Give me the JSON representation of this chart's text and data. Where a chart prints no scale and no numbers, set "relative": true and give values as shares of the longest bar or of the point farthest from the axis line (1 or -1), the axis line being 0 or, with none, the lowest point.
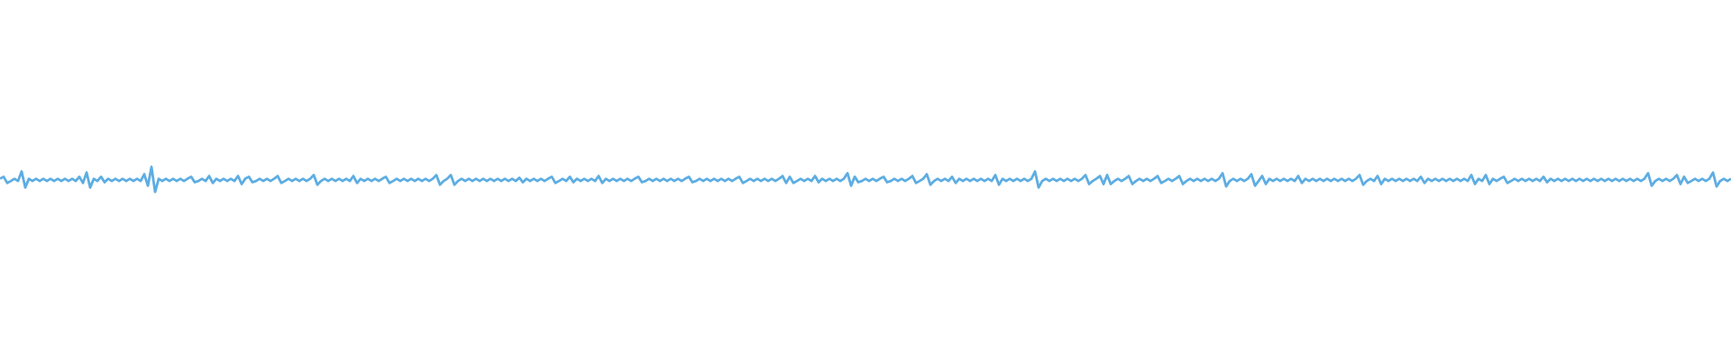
{
  "chart_data": {
    "type": "line",
    "relative": true,
    "color": "#5dade2",
    "categories": [
      null,
      null,
      null,
      null,
      null,
      null,
      null,
      null,
      null,
      null,
      null,
      null,
      null,
      null,
      null,
      null,
      null,
      null,
      null,
      null,
      null,
      null,
      null,
      null,
      null,
      null,
      null,
      null,
      null,
      null,
      null,
      null,
      null,
      null,
      null,
      null,
      null,
      null,
      null,
      null,
      null,
      null,
      null,
      null,
      null,
      null,
      null,
      null,
      null,
      null,
      null,
      null,
      null,
      null,
      null,
      null,
      null,
      null,
      null,
      null,
      null,
      null,
      null,
      null,
      null,
      null,
      null,
      null,
      null,
      null,
      null,
      null,
      null,
      null,
      null,
      null,
      null,
      null,
      null,
      null,
      null,
      null,
      null,
      null,
      null,
      null,
      null,
      null,
      null,
      null,
      null,
      null,
      null,
      null,
      null,
      null,
      null,
      null,
      null,
      null,
      null,
      null,
      null,
      null,
      null,
      null,
      null,
      null,
      null,
      null,
      null,
      null,
      null,
      null,
      null,
      null,
      null,
      null,
      null,
      null,
      null,
      null,
      null,
      null,
      null,
      null,
      null,
      null,
      null,
      null,
      null,
      null,
      null,
      null,
      null,
      null,
      null,
      null,
      null,
      null,
      null,
      null,
      null,
      null,
      null,
      null,
      null,
      null,
      null,
      null,
      null,
      null,
      null,
      null,
      null,
      null,
      null,
      null,
      null,
      null,
      null,
      null,
      null,
      null,
      null,
      null,
      null,
      null,
      null,
      null,
      null,
      null,
      null,
      null,
      null,
      null,
      null,
      null,
      null,
      null,
      null,
      null,
      null,
      null,
      null,
      null,
      null,
      null,
      null,
      null,
      null,
      null,
      null,
      null,
      null,
      null,
      null,
      null,
      null,
      null,
      null,
      null,
      null,
      null,
      null,
      null,
      null,
      null,
      null,
      null,
      null,
      null,
      null,
      null,
      null,
      null,
      null,
      null,
      null,
      null,
      null,
      null,
      null,
      null,
      null,
      null,
      null,
      null,
      null,
      null,
      null,
      null,
      null,
      null,
      null,
      null,
      null,
      null,
      null,
      null,
      null,
      null,
      null,
      null,
      null,
      null,
      null,
      null,
      null,
      null,
      null,
      null,
      null,
      null,
      null,
      null,
      null,
      null,
      null,
      null,
      null,
      null,
      null,
      null,
      null,
      null,
      null,
      null,
      null,
      null,
      null,
      null,
      null,
      null,
      null,
      null,
      null,
      null,
      null,
      null,
      null,
      null,
      null,
      null,
      null,
      null,
      null,
      null,
      null,
      null,
      null,
      null,
      null,
      null,
      null,
      null,
      null,
      null,
      null,
      null,
      null,
      null,
      null,
      null,
      null,
      null,
      null,
      null,
      null,
      null,
      null,
      null,
      null,
      null,
      null,
      null,
      null,
      null,
      null,
      null,
      null,
      null,
      null,
      null,
      null,
      null,
      null,
      null,
      null,
      null,
      null,
      null,
      null,
      null,
      null,
      null,
      null,
      null,
      null,
      null,
      null,
      null,
      null,
      null,
      null,
      null,
      null,
      null,
      null,
      null,
      null,
      null,
      null,
      null,
      null,
      null,
      null,
      null,
      null,
      null,
      null,
      null,
      null,
      null,
      null,
      null,
      null,
      null,
      null,
      null,
      null,
      null,
      null,
      null,
      null,
      null,
      null,
      null,
      null,
      null,
      null,
      null,
      null,
      null,
      null,
      null,
      null,
      null,
      null,
      null,
      null,
      null,
      null,
      null,
      null,
      null,
      null,
      null,
      null,
      null,
      null,
      null,
      null,
      null,
      null,
      null,
      null,
      null,
      null,
      null,
      null,
      null,
      null,
      null,
      null,
      null,
      null,
      null,
      null,
      null,
      null,
      null,
      null,
      null,
      null,
      null,
      null,
      null,
      null,
      null,
      null,
      null,
      null,
      null,
      null,
      null,
      null,
      null,
      null,
      null,
      null,
      null,
      null,
      null,
      null,
      null,
      null,
      null,
      null,
      null,
      null,
      null,
      null,
      null,
      null,
      null,
      null,
      null,
      null,
      null,
      null,
      null,
      null,
      null,
      null,
      null,
      null,
      null,
      null,
      null,
      null,
      null,
      null,
      null,
      null,
      null,
      null,
      null,
      null,
      null,
      null
    ],
    "values": [
      0.53,
      0.61,
      0.36,
      0.44,
      0.53,
      0.44,
      0.82,
      0.18,
      0.53,
      0.44,
      0.53,
      0.44,
      0.53,
      0.44,
      0.53,
      0.44,
      0.53,
      0.44,
      0.53,
      0.44,
      0.53,
      0.44,
      0.61,
      0.36,
      0.78,
      0.18,
      0.53,
      0.44,
      0.61,
      0.39,
      0.53,
      0.44,
      0.53,
      0.44,
      0.53,
      0.44,
      0.53,
      0.44,
      0.53,
      0.44,
      0.71,
      0.25,
      1,
      0,
      0.53,
      0.44,
      0.53,
      0.44,
      0.53,
      0.44,
      0.53,
      0.44,
      0.53,
      0.61,
      0.39,
      0.44,
      0.53,
      0.44,
      0.64,
      0.36,
      0.53,
      0.44,
      0.53,
      0.44,
      0.53,
      0.44,
      0.64,
      0.32,
      0.53,
      0.61,
      0.39,
      0.44,
      0.53,
      0.44,
      0.53,
      0.44,
      0.53,
      0.64,
      0.36,
      0.44,
      0.53,
      0.44,
      0.53,
      0.44,
      0.53,
      0.44,
      0.53,
      0.68,
      0.29,
      0.44,
      0.53,
      0.44,
      0.53,
      0.44,
      0.53,
      0.44,
      0.53,
      0.44,
      0.64,
      0.36,
      0.53,
      0.44,
      0.53,
      0.44,
      0.53,
      0.44,
      0.53,
      0.61,
      0.36,
      0.44,
      0.53,
      0.44,
      0.53,
      0.44,
      0.53,
      0.44,
      0.53,
      0.44,
      0.53,
      0.44,
      0.53,
      0.68,
      0.29,
      0.44,
      0.53,
      0.68,
      0.29,
      0.44,
      0.53,
      0.44,
      0.53,
      0.44,
      0.53,
      0.44,
      0.53,
      0.44,
      0.53,
      0.44,
      0.53,
      0.44,
      0.53,
      0.44,
      0.53,
      0.44,
      0.57,
      0.39,
      0.53,
      0.44,
      0.53,
      0.44,
      0.53,
      0.44,
      0.53,
      0.61,
      0.36,
      0.44,
      0.53,
      0.44,
      0.61,
      0.39,
      0.53,
      0.44,
      0.53,
      0.44,
      0.53,
      0.44,
      0.64,
      0.36,
      0.53,
      0.44,
      0.53,
      0.44,
      0.53,
      0.44,
      0.53,
      0.44,
      0.53,
      0.61,
      0.39,
      0.44,
      0.53,
      0.44,
      0.53,
      0.44,
      0.53,
      0.44,
      0.53,
      0.44,
      0.53,
      0.44,
      0.53,
      0.61,
      0.39,
      0.44,
      0.53,
      0.44,
      0.53,
      0.44,
      0.53,
      0.44,
      0.53,
      0.44,
      0.53,
      0.44,
      0.53,
      0.61,
      0.36,
      0.44,
      0.53,
      0.44,
      0.53,
      0.44,
      0.53,
      0.44,
      0.53,
      0.44,
      0.53,
      0.64,
      0.36,
      0.61,
      0.36,
      0.44,
      0.53,
      0.44,
      0.53,
      0.44,
      0.64,
      0.39,
      0.53,
      0.44,
      0.53,
      0.44,
      0.53,
      0.44,
      0.53,
      0.75,
      0.25,
      0.61,
      0.39,
      0.44,
      0.53,
      0.44,
      0.53,
      0.44,
      0.53,
      0.61,
      0.39,
      0.44,
      0.53,
      0.44,
      0.53,
      0.44,
      0.53,
      0.64,
      0.36,
      0.44,
      0.53,
      0.71,
      0.29,
      0.44,
      0.53,
      0.44,
      0.53,
      0.44,
      0.61,
      0.36,
      0.53,
      0.44,
      0.53,
      0.44,
      0.53,
      0.44,
      0.53,
      0.44,
      0.53,
      0.44,
      0.68,
      0.29,
      0.53,
      0.44,
      0.53,
      0.44,
      0.53,
      0.44,
      0.53,
      0.44,
      0.53,
      0.82,
      0.18,
      0.44,
      0.53,
      0.44,
      0.53,
      0.44,
      0.53,
      0.44,
      0.53,
      0.44,
      0.53,
      0.44,
      0.53,
      0.68,
      0.32,
      0.44,
      0.53,
      0.64,
      0.32,
      0.68,
      0.32,
      0.44,
      0.53,
      0.44,
      0.53,
      0.64,
      0.32,
      0.44,
      0.53,
      0.44,
      0.53,
      0.44,
      0.53,
      0.64,
      0.36,
      0.44,
      0.53,
      0.44,
      0.53,
      0.64,
      0.32,
      0.44,
      0.53,
      0.44,
      0.53,
      0.44,
      0.53,
      0.44,
      0.53,
      0.44,
      0.53,
      0.75,
      0.22,
      0.44,
      0.53,
      0.44,
      0.53,
      0.44,
      0.53,
      0.71,
      0.25,
      0.44,
      0.64,
      0.32,
      0.53,
      0.44,
      0.53,
      0.44,
      0.53,
      0.44,
      0.53,
      0.44,
      0.64,
      0.36,
      0.53,
      0.44,
      0.53,
      0.44,
      0.53,
      0.44,
      0.53,
      0.44,
      0.53,
      0.44,
      0.53,
      0.44,
      0.53,
      0.44,
      0.53,
      0.68,
      0.29,
      0.44,
      0.53,
      0.44,
      0.64,
      0.32,
      0.53,
      0.44,
      0.53,
      0.44,
      0.53,
      0.44,
      0.53,
      0.44,
      0.53,
      0.44,
      0.61,
      0.36,
      0.53,
      0.44,
      0.53,
      0.44,
      0.53,
      0.44,
      0.53,
      0.44,
      0.53,
      0.44,
      0.53,
      0.44,
      0.68,
      0.32,
      0.53,
      0.44,
      0.68,
      0.32,
      0.53,
      0.44,
      0.53,
      0.61,
      0.36,
      0.44,
      0.53,
      0.44,
      0.53,
      0.44,
      0.53,
      0.44,
      0.53,
      0.44,
      0.61,
      0.39,
      0.53,
      0.44,
      0.53,
      0.44,
      0.53,
      0.44,
      0.53,
      0.44,
      0.53,
      0.44,
      0.53,
      0.44,
      0.53,
      0.44,
      0.53,
      0.44,
      0.53,
      0.44,
      0.53,
      0.44,
      0.53,
      0.44,
      0.53,
      0.44,
      0.53,
      0.44,
      0.53,
      0.75,
      0.25,
      0.44,
      0.53,
      0.44,
      0.53,
      0.44,
      0.53,
      0.68,
      0.32,
      0.61,
      0.36,
      0.44,
      0.53,
      0.44,
      0.53,
      0.44,
      0.53,
      0.78,
      0.22,
      0.44,
      0.53,
      0.44,
      0.53
    ]
  }
}
